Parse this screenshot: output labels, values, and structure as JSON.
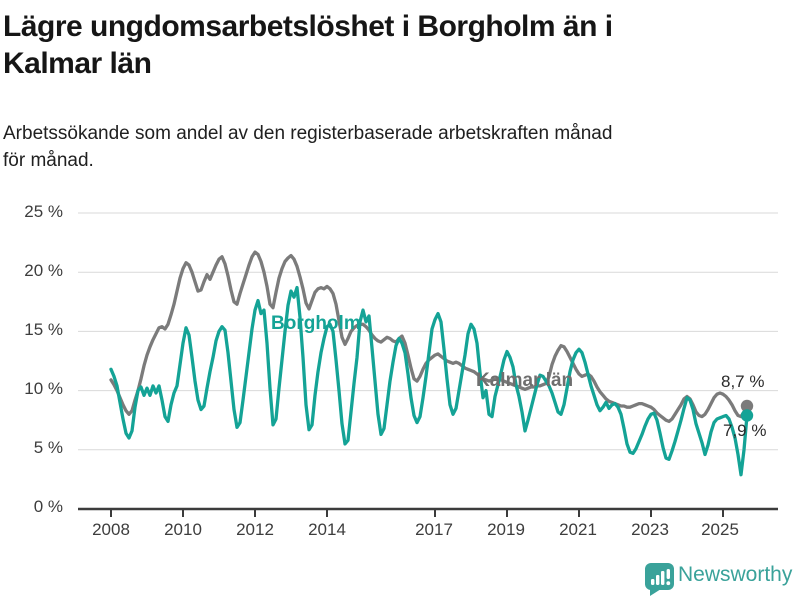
{
  "header": {
    "title_line1": "Lägre ungdomsarbetslöshet i Borgholm än i",
    "title_line2": "Kalmar län",
    "subtitle_line1": "Arbetssökande som andel av den registerbaserade arbetskraften månad",
    "subtitle_line2": "för månad."
  },
  "footer": {
    "brand": "Newsworthy"
  },
  "colors": {
    "borgholm_line": "#14a396",
    "kalmar_line": "#7b7b7b",
    "gridline": "#d9d9d9",
    "axis": "#3c3c3c",
    "brand_teal": "#3aa29a"
  },
  "chart_data": {
    "type": "line",
    "unit": "%",
    "frequency": "monthly",
    "x_start": "2008-01",
    "x_end": "2025-09",
    "grid": true,
    "legend_position": "inline-labels",
    "y_axis": {
      "range": [
        0,
        25
      ],
      "tick_values": [
        0,
        5,
        10,
        15,
        20,
        25
      ],
      "tick_labels": [
        "0 %",
        "5 %",
        "10 %",
        "15 %",
        "20 %",
        "25 %"
      ]
    },
    "x_axis": {
      "tick_labels": [
        "2008",
        "2010",
        "2012",
        "2014",
        "2017",
        "2019",
        "2021",
        "2023",
        "2025"
      ]
    },
    "series": [
      {
        "name": "Borgholm",
        "color": "#14a396",
        "end_label": "7,9 %",
        "end_value": 7.9,
        "values": [
          11.8,
          11.2,
          10.4,
          9.0,
          7.6,
          6.4,
          6.0,
          6.6,
          8.6,
          10.0,
          10.3,
          9.6,
          10.2,
          9.6,
          10.4,
          9.8,
          10.4,
          9.2,
          7.8,
          7.4,
          8.8,
          9.8,
          10.4,
          12.2,
          14.0,
          15.3,
          14.7,
          12.8,
          10.8,
          9.2,
          8.4,
          8.7,
          10.2,
          11.6,
          12.8,
          14.2,
          15.0,
          15.4,
          15.1,
          13.2,
          10.8,
          8.4,
          6.9,
          7.3,
          9.2,
          11.2,
          13.2,
          15.2,
          16.8,
          17.6,
          16.5,
          16.8,
          14.0,
          10.2,
          7.1,
          7.6,
          10.2,
          12.6,
          15.0,
          17.2,
          18.4,
          17.9,
          18.7,
          16.2,
          12.8,
          8.8,
          6.7,
          7.1,
          9.6,
          11.6,
          13.2,
          14.4,
          15.4,
          15.6,
          15.0,
          12.6,
          10.0,
          7.2,
          5.5,
          5.8,
          8.2,
          10.6,
          12.8,
          15.8,
          16.8,
          15.8,
          16.3,
          13.6,
          10.8,
          8.0,
          6.3,
          6.8,
          8.8,
          10.8,
          12.4,
          13.8,
          14.4,
          14.0,
          13.2,
          11.4,
          9.4,
          7.9,
          7.3,
          7.8,
          9.4,
          11.2,
          13.2,
          15.2,
          16.0,
          16.5,
          15.8,
          13.5,
          11.0,
          8.8,
          8.0,
          8.5,
          10.0,
          11.5,
          13.0,
          14.8,
          15.6,
          15.2,
          14.0,
          11.5,
          9.4,
          10.0,
          8.0,
          7.8,
          9.5,
          10.5,
          11.5,
          12.6,
          13.3,
          12.8,
          12.0,
          10.5,
          9.5,
          8.2,
          6.6,
          7.5,
          8.5,
          9.5,
          10.5,
          11.3,
          11.2,
          10.8,
          10.4,
          9.8,
          9.0,
          8.2,
          8.0,
          8.8,
          10.2,
          11.6,
          12.6,
          13.2,
          13.5,
          13.2,
          12.4,
          11.4,
          10.4,
          9.6,
          8.8,
          8.3,
          8.6,
          9.0,
          8.5,
          8.8,
          8.9,
          8.6,
          8.0,
          6.8,
          5.5,
          4.8,
          4.7,
          5.1,
          5.7,
          6.3,
          7.0,
          7.6,
          8.0,
          8.1,
          7.5,
          6.4,
          5.2,
          4.3,
          4.2,
          4.9,
          5.7,
          6.6,
          7.5,
          8.5,
          9.4,
          9.2,
          8.4,
          7.2,
          6.4,
          5.6,
          4.6,
          5.4,
          6.5,
          7.3,
          7.6,
          7.7,
          7.8,
          7.9,
          7.6,
          6.9,
          6.0,
          4.6,
          2.9,
          5.0,
          7.9
        ]
      },
      {
        "name": "Kalmar län",
        "color": "#7b7b7b",
        "end_label": "8,7 %",
        "end_value": 8.7,
        "values": [
          10.9,
          10.5,
          10.0,
          9.4,
          8.8,
          8.3,
          8.0,
          8.3,
          9.2,
          10.0,
          11.0,
          12.1,
          13.0,
          13.7,
          14.3,
          14.8,
          15.3,
          15.4,
          15.2,
          15.6,
          16.4,
          17.3,
          18.4,
          19.5,
          20.3,
          20.8,
          20.6,
          20.0,
          19.2,
          18.4,
          18.5,
          19.2,
          19.8,
          19.4,
          20.0,
          20.6,
          21.1,
          21.3,
          20.7,
          19.7,
          18.5,
          17.5,
          17.3,
          18.2,
          19.0,
          19.8,
          20.6,
          21.3,
          21.7,
          21.5,
          20.9,
          20.0,
          18.8,
          17.3,
          17.0,
          18.3,
          19.5,
          20.3,
          20.9,
          21.2,
          21.4,
          21.1,
          20.5,
          19.6,
          18.6,
          17.4,
          16.9,
          17.6,
          18.3,
          18.6,
          18.7,
          18.6,
          18.8,
          18.6,
          18.2,
          17.3,
          15.9,
          14.5,
          13.9,
          14.4,
          15.0,
          15.3,
          15.5,
          15.6,
          15.6,
          15.4,
          15.1,
          14.7,
          14.4,
          14.2,
          14.1,
          14.3,
          14.5,
          14.4,
          14.2,
          14.1,
          14.4,
          14.6,
          14.0,
          13.0,
          11.9,
          11.0,
          10.8,
          11.2,
          11.8,
          12.3,
          12.6,
          12.8,
          13.0,
          13.1,
          12.9,
          12.7,
          12.5,
          12.4,
          12.3,
          12.4,
          12.3,
          12.1,
          11.9,
          11.8,
          11.7,
          11.6,
          11.4,
          11.2,
          11.0,
          10.9,
          10.8,
          10.9,
          11.0,
          11.0,
          10.9,
          10.8,
          10.7,
          10.6,
          10.5,
          10.4,
          10.3,
          10.2,
          10.1,
          10.2,
          10.3,
          10.3,
          10.4,
          10.4,
          10.5,
          10.6,
          11.2,
          12.2,
          12.9,
          13.4,
          13.8,
          13.7,
          13.3,
          12.8,
          12.3,
          11.8,
          11.4,
          11.2,
          11.3,
          11.4,
          11.2,
          10.8,
          10.3,
          9.9,
          9.6,
          9.3,
          9.1,
          9.0,
          8.9,
          8.8,
          8.7,
          8.7,
          8.6,
          8.6,
          8.7,
          8.8,
          8.9,
          8.9,
          8.8,
          8.7,
          8.6,
          8.4,
          8.1,
          7.9,
          7.7,
          7.5,
          7.4,
          7.6,
          8.0,
          8.4,
          8.8,
          9.3,
          9.5,
          9.3,
          8.8,
          8.2,
          7.9,
          7.8,
          8.0,
          8.4,
          8.9,
          9.4,
          9.7,
          9.8,
          9.7,
          9.5,
          9.2,
          8.8,
          8.3,
          7.9,
          7.8,
          8.2,
          8.7
        ]
      }
    ],
    "annotations": {
      "borgholm_label": "Borgholm",
      "kalmar_label": "Kalmar län",
      "kalmar_end_label": "8,7 %",
      "borgholm_end_label": "7,9 %"
    }
  }
}
